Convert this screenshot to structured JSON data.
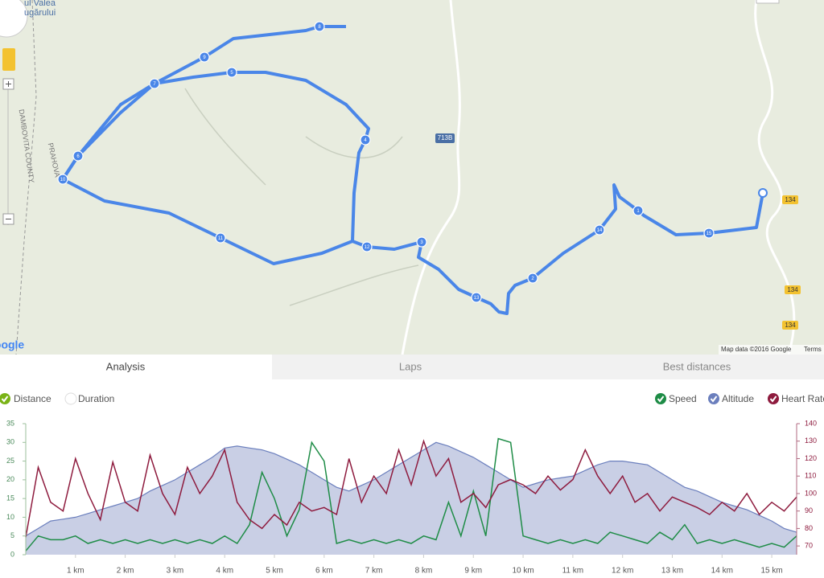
{
  "map": {
    "place_label": [
      "ul Valea",
      "ugărului"
    ],
    "region_labels": [
      "PRAHOVA",
      "DAMBOVITA COUNTY"
    ],
    "road_shields": [
      "713B",
      "134",
      "134",
      "134"
    ],
    "markers": [
      "1",
      "2",
      "3",
      "4",
      "5",
      "6",
      "7",
      "8",
      "9",
      "10",
      "11",
      "12",
      "13",
      "14",
      "15"
    ],
    "attribution": "Map data ©2016 Google",
    "terms": "Terms",
    "logo": "Google"
  },
  "tabs": [
    "Analysis",
    "Laps",
    "Best distances"
  ],
  "x_toggles": [
    "Distance",
    "Duration"
  ],
  "chart_data": {
    "type": "line",
    "x": [
      0,
      0.25,
      0.5,
      0.75,
      1,
      1.25,
      1.5,
      1.75,
      2,
      2.25,
      2.5,
      2.75,
      3,
      3.25,
      3.5,
      3.75,
      4,
      4.25,
      4.5,
      4.75,
      5,
      5.25,
      5.5,
      5.75,
      6,
      6.25,
      6.5,
      6.75,
      7,
      7.25,
      7.5,
      7.75,
      8,
      8.25,
      8.5,
      8.75,
      9,
      9.25,
      9.5,
      9.75,
      10,
      10.25,
      10.5,
      10.75,
      11,
      11.25,
      11.5,
      11.75,
      12,
      12.25,
      12.5,
      12.75,
      13,
      13.25,
      13.5,
      13.75,
      14,
      14.25,
      14.5,
      14.75,
      15,
      15.25,
      15.5
    ],
    "xlim": [
      0,
      15.5
    ],
    "xticks": [
      {
        "value": 1,
        "label": "1 km"
      },
      {
        "value": 2,
        "label": "2 km"
      },
      {
        "value": 3,
        "label": "3 km"
      },
      {
        "value": 4,
        "label": "4 km"
      },
      {
        "value": 5,
        "label": "5 km"
      },
      {
        "value": 6,
        "label": "6 km"
      },
      {
        "value": 7,
        "label": "7 km"
      },
      {
        "value": 8,
        "label": "8 km"
      },
      {
        "value": 9,
        "label": "9 km"
      },
      {
        "value": 10,
        "label": "10 km"
      },
      {
        "value": 11,
        "label": "11 km"
      },
      {
        "value": 12,
        "label": "12 km"
      },
      {
        "value": 13,
        "label": "13 km"
      },
      {
        "value": 14,
        "label": "14 km"
      },
      {
        "value": 15,
        "label": "15 km"
      }
    ],
    "ylim": [
      0,
      35
    ],
    "yticks": [
      0,
      5,
      10,
      15,
      20,
      25,
      30,
      35
    ],
    "y2lim": [
      65,
      140
    ],
    "y2ticks": [
      70,
      80,
      90,
      100,
      110,
      120,
      130,
      140
    ],
    "series": [
      {
        "name": "Altitude",
        "color": "#6b7fbd",
        "fill": "#c9cfe5",
        "values": [
          5,
          7,
          9,
          9.5,
          10,
          11,
          12,
          13,
          14,
          15,
          17,
          18.5,
          20,
          22,
          24,
          26,
          28.5,
          29,
          28.5,
          28,
          27,
          25.5,
          24,
          22,
          20,
          18,
          17,
          18.5,
          20,
          22,
          24,
          26,
          28,
          30,
          29,
          27.5,
          26,
          24,
          22,
          20,
          18,
          19,
          20,
          20.5,
          21,
          22.5,
          24,
          25,
          25,
          24.5,
          24,
          22,
          20,
          18,
          17,
          15.5,
          14,
          13,
          12,
          10.5,
          9,
          7,
          6
        ]
      },
      {
        "name": "Speed",
        "color": "#1e8c46",
        "values": [
          1,
          5,
          4,
          4,
          5,
          3,
          4,
          3,
          4,
          3,
          4,
          3,
          4,
          3,
          4,
          3,
          5,
          3,
          8,
          22,
          15,
          5,
          12,
          30,
          25,
          3,
          4,
          3,
          4,
          3,
          4,
          3,
          5,
          4,
          14,
          5,
          17,
          5,
          31,
          30,
          5,
          4,
          3,
          4,
          3,
          4,
          3,
          6,
          5,
          4,
          3,
          6,
          4,
          8,
          3,
          4,
          3,
          4,
          3,
          2,
          3,
          2,
          5
        ]
      },
      {
        "name": "Heart Rate",
        "color": "#8e1b3e",
        "axis": "y2",
        "values": [
          75,
          115,
          95,
          90,
          120,
          100,
          85,
          118,
          95,
          90,
          122,
          100,
          88,
          115,
          100,
          110,
          125,
          95,
          85,
          80,
          88,
          82,
          95,
          90,
          92,
          88,
          120,
          95,
          110,
          100,
          125,
          105,
          130,
          110,
          120,
          95,
          100,
          92,
          105,
          108,
          105,
          100,
          110,
          102,
          108,
          125,
          110,
          100,
          110,
          95,
          100,
          90,
          98,
          95,
          92,
          88,
          95,
          90,
          100,
          88,
          95,
          90,
          98
        ]
      }
    ]
  }
}
